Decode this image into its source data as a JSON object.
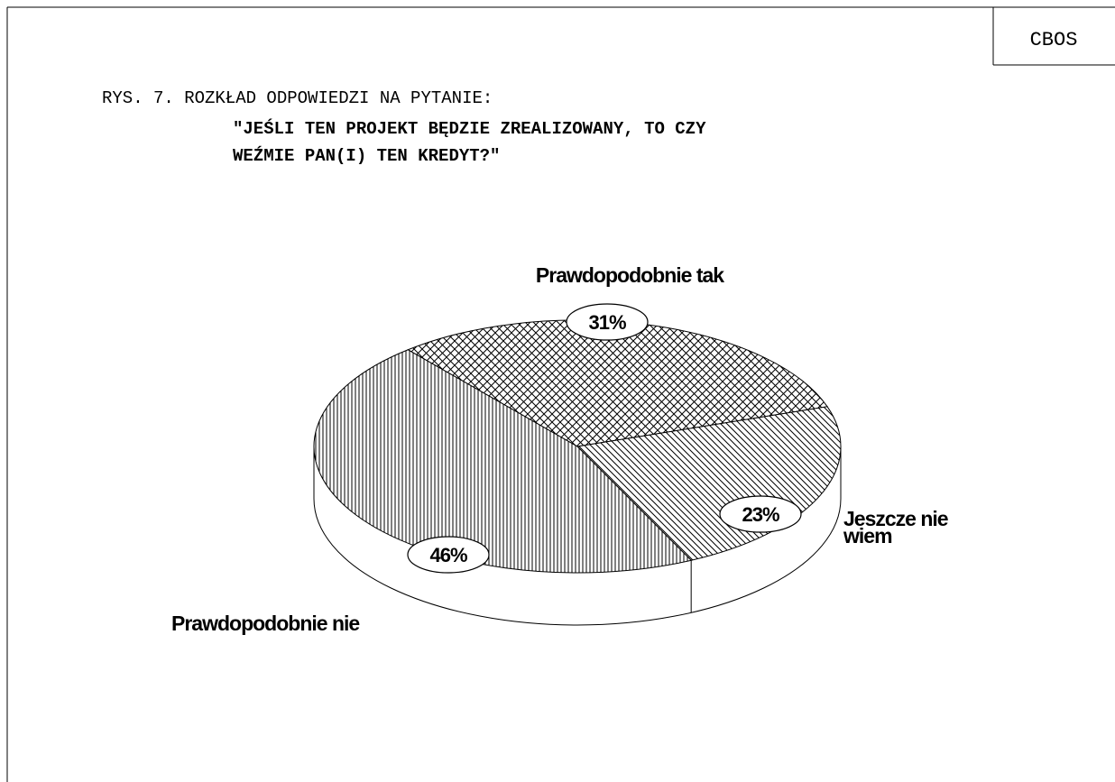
{
  "header": {
    "source": "CBOS"
  },
  "chart_data": {
    "type": "pie",
    "title": "RYS. 7. ROZKŁAD ODPOWIEDZI NA PYTANIE:",
    "subtitle": [
      "\"JEŚLI TEN PROJEKT BĘDZIE ZREALIZOWANY, TO CZY",
      "WEŹMIE PAN(I) TEN KREDYT?\""
    ],
    "categories": [
      "Prawdopodobnie tak",
      "Jeszcze nie wiem",
      "Prawdopodobnie nie"
    ],
    "values": [
      31,
      23,
      46
    ],
    "value_labels": [
      "31%",
      "23%",
      "46%"
    ],
    "patterns": [
      "crosshatch",
      "diagonal",
      "vertical"
    ]
  }
}
